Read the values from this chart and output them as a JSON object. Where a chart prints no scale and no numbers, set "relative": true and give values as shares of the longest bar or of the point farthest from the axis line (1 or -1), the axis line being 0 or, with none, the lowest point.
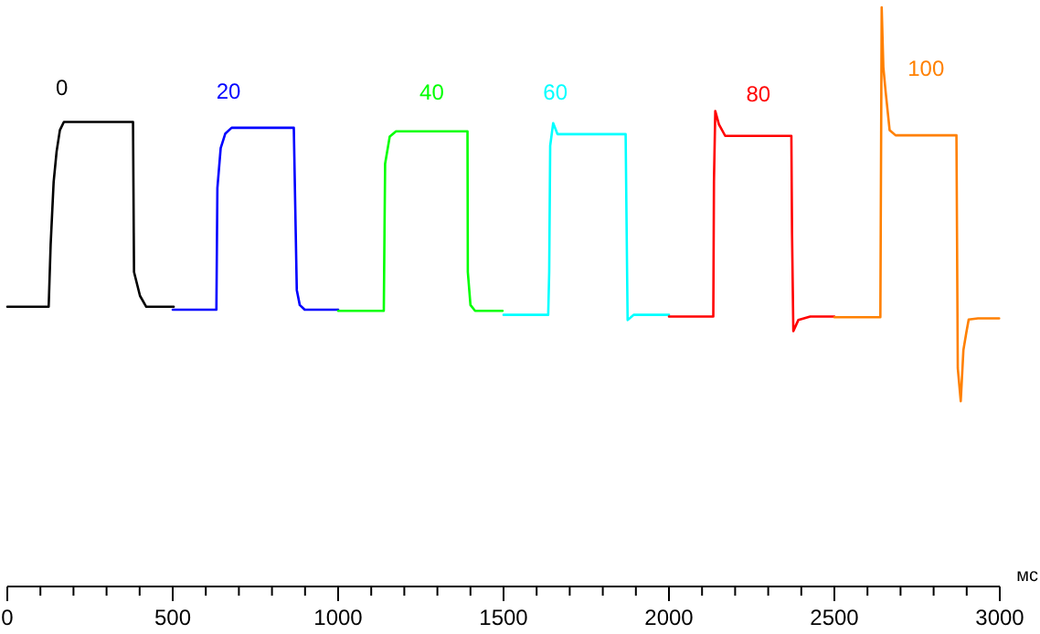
{
  "chart_data": {
    "type": "line",
    "relative": true,
    "xlabel": "мс",
    "xlim": [
      0,
      3000
    ],
    "xticks": [
      0,
      {
        "value": 100,
        "label": null
      },
      {
        "value": 200,
        "label": null
      },
      {
        "value": 300,
        "label": null
      },
      {
        "value": 400,
        "label": null
      },
      500,
      {
        "value": 600,
        "label": null
      },
      {
        "value": 700,
        "label": null
      },
      {
        "value": 800,
        "label": null
      },
      {
        "value": 900,
        "label": null
      },
      1000,
      {
        "value": 1100,
        "label": null
      },
      {
        "value": 1200,
        "label": null
      },
      {
        "value": 1300,
        "label": null
      },
      {
        "value": 1400,
        "label": null
      },
      1500,
      {
        "value": 1600,
        "label": null
      },
      {
        "value": 1700,
        "label": null
      },
      {
        "value": 1800,
        "label": null
      },
      {
        "value": 1900,
        "label": null
      },
      2000,
      {
        "value": 2100,
        "label": null
      },
      {
        "value": 2200,
        "label": null
      },
      {
        "value": 2300,
        "label": null
      },
      {
        "value": 2400,
        "label": null
      },
      2500,
      {
        "value": 2600,
        "label": null
      },
      {
        "value": 2700,
        "label": null
      },
      {
        "value": 2800,
        "label": null
      },
      {
        "value": 2900,
        "label": null
      },
      3000
    ],
    "legend": false,
    "marker": "none",
    "line_style": "solid",
    "grid": false,
    "series": [
      {
        "name": "0",
        "color": "#000000",
        "x": [
          0,
          125,
          131,
          140,
          149,
          159,
          171,
          380,
          383,
          401,
          420,
          503
        ],
        "values": [
          0.483,
          0.483,
          0.59,
          0.698,
          0.751,
          0.788,
          0.802,
          0.802,
          0.543,
          0.502,
          0.483,
          0.483
        ]
      },
      {
        "name": "20",
        "color": "#0000ff",
        "x": [
          500,
          632,
          635,
          645,
          659,
          678,
          866,
          875,
          884,
          899,
          1000
        ],
        "values": [
          0.478,
          0.478,
          0.688,
          0.757,
          0.782,
          0.792,
          0.792,
          0.512,
          0.486,
          0.478,
          0.478
        ]
      },
      {
        "name": "40",
        "color": "#00ff00",
        "x": [
          1000,
          1138,
          1142,
          1156,
          1175,
          1391,
          1392,
          1400,
          1414,
          1497
        ],
        "values": [
          0.476,
          0.476,
          0.73,
          0.777,
          0.786,
          0.786,
          0.543,
          0.486,
          0.476,
          0.476
        ]
      },
      {
        "name": "60",
        "color": "#00ffff",
        "x": [
          1500,
          1635,
          1638,
          1641,
          1650,
          1663,
          1869,
          1875,
          1893,
          2000
        ],
        "values": [
          0.469,
          0.469,
          0.543,
          0.761,
          0.8,
          0.781,
          0.781,
          0.46,
          0.469,
          0.469
        ]
      },
      {
        "name": "80",
        "color": "#ff0000",
        "x": [
          2000,
          2134,
          2136,
          2140,
          2151,
          2170,
          2370,
          2372,
          2376,
          2391,
          2427,
          2500
        ],
        "values": [
          0.466,
          0.466,
          0.699,
          0.821,
          0.798,
          0.778,
          0.778,
          0.611,
          0.441,
          0.46,
          0.466,
          0.466
        ]
      },
      {
        "name": "100",
        "color": "#ff8000",
        "x": [
          2500,
          2639,
          2643,
          2648,
          2655,
          2667,
          2685,
          2869,
          2873,
          2882,
          2890,
          2899,
          2906,
          2934,
          2998
        ],
        "values": [
          0.465,
          0.465,
          1,
          0.897,
          0.854,
          0.788,
          0.779,
          0.779,
          0.377,
          0.32,
          0.408,
          0.439,
          0.461,
          0.463,
          0.463
        ]
      }
    ]
  }
}
